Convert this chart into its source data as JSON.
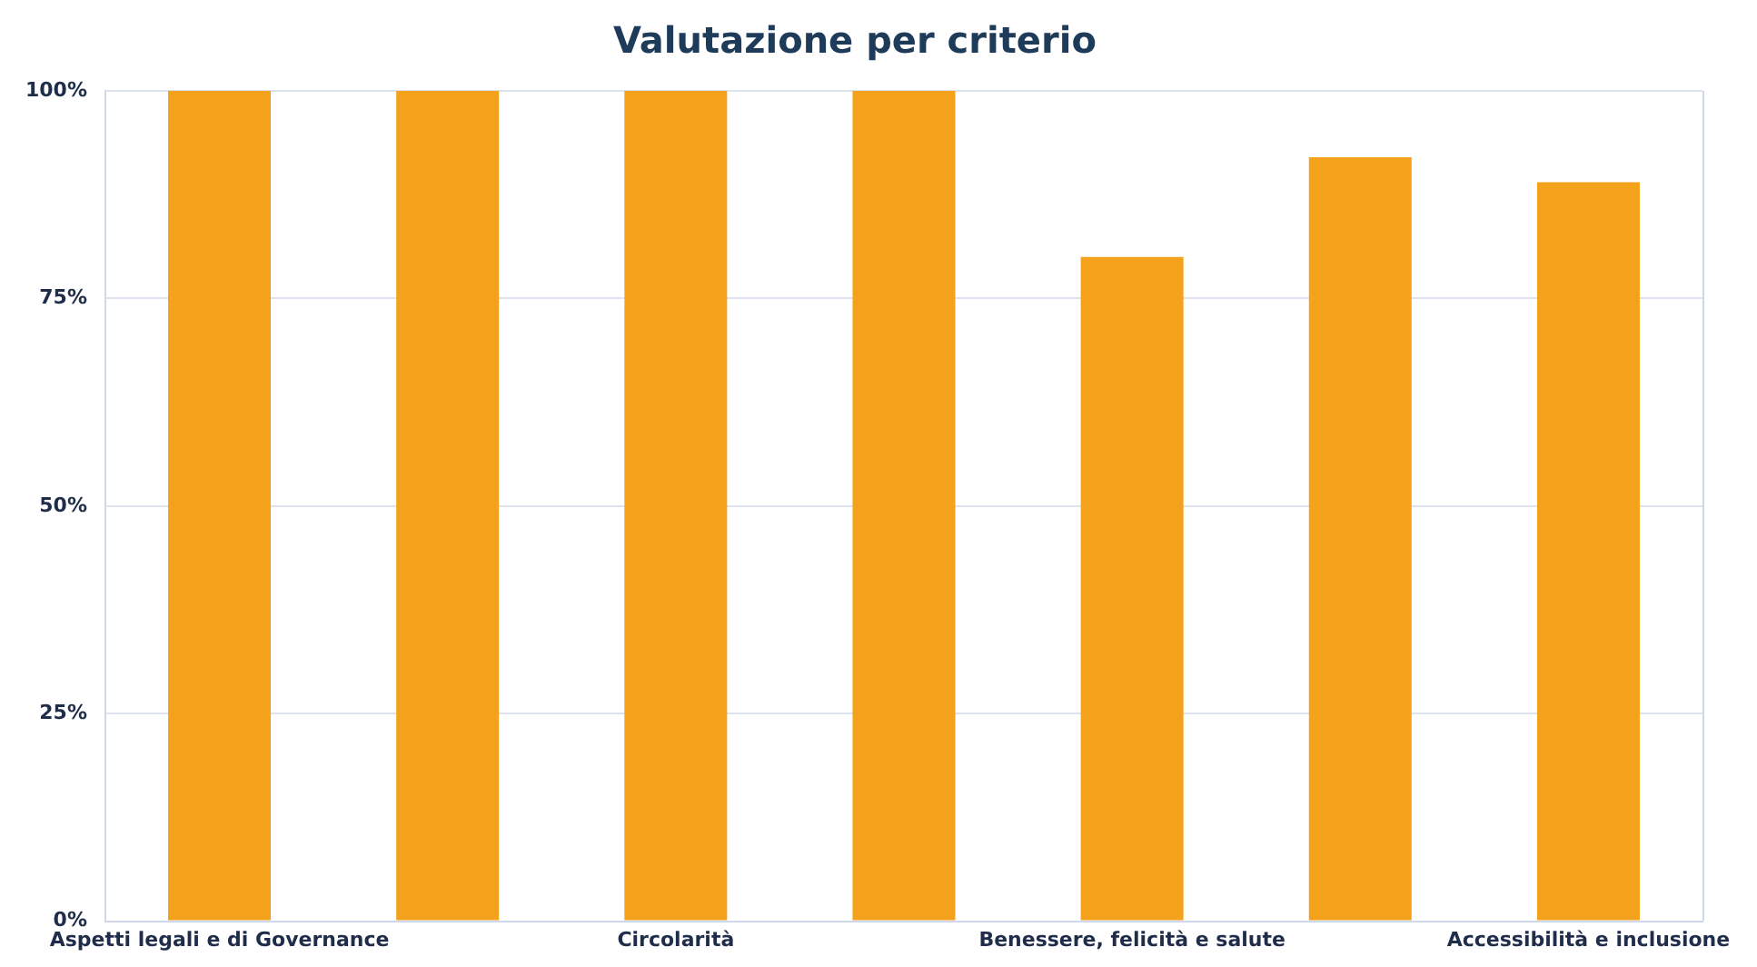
{
  "chart_data": {
    "type": "bar",
    "title": "Valutazione per criterio",
    "categories": [
      "Aspetti legali e di Governance",
      null,
      "Circolarità",
      null,
      "Benessere, felicità e salute",
      null,
      "Accessibilità e inclusione"
    ],
    "values": [
      100,
      100,
      100,
      100,
      80,
      92,
      89
    ],
    "color": "#f4a21c",
    "ylim": [
      0,
      100
    ],
    "yticks": [
      {
        "value": 0,
        "label": "0%"
      },
      {
        "value": 25,
        "label": "25%"
      },
      {
        "value": 50,
        "label": "50%"
      },
      {
        "value": 75,
        "label": "75%"
      },
      {
        "value": 100,
        "label": "100%"
      }
    ],
    "grid": "y",
    "legend": false
  }
}
